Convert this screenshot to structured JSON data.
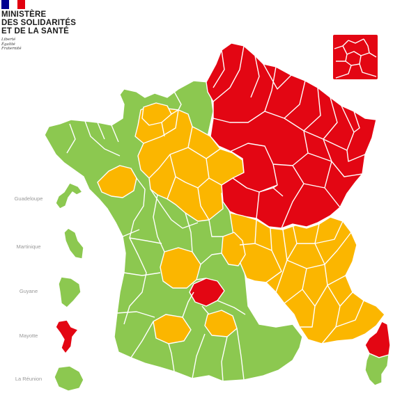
{
  "header": {
    "ministry_lines": [
      "MINISTÈRE",
      "DES SOLIDARITÉS",
      "ET DE LA SANTÉ"
    ],
    "motto_lines": [
      "Liberté",
      "Égalité",
      "Fraternité"
    ],
    "flag_colors": [
      "#000091",
      "#ffffff",
      "#e1000f"
    ]
  },
  "legend_colors": {
    "green": "#8cc850",
    "orange": "#fbb600",
    "red": "#e30613",
    "border": "#ffffff"
  },
  "overseas": [
    {
      "name": "Guadeloupe",
      "status": "green"
    },
    {
      "name": "Martinique",
      "status": "green"
    },
    {
      "name": "Guyane",
      "status": "green"
    },
    {
      "name": "Mayotte",
      "status": "red"
    },
    {
      "name": "La Réunion",
      "status": "green"
    }
  ],
  "inset": {
    "name": "Île-de-France inset",
    "status": "red"
  },
  "mainland_zones": [
    {
      "zone": "north-east",
      "status": "red"
    },
    {
      "zone": "normandy-centre",
      "status": "orange"
    },
    {
      "zone": "south-east",
      "status": "orange"
    },
    {
      "zone": "west-south-west",
      "status": "green"
    },
    {
      "zone": "corsica-north",
      "status": "red"
    },
    {
      "zone": "corsica-south",
      "status": "green"
    }
  ]
}
